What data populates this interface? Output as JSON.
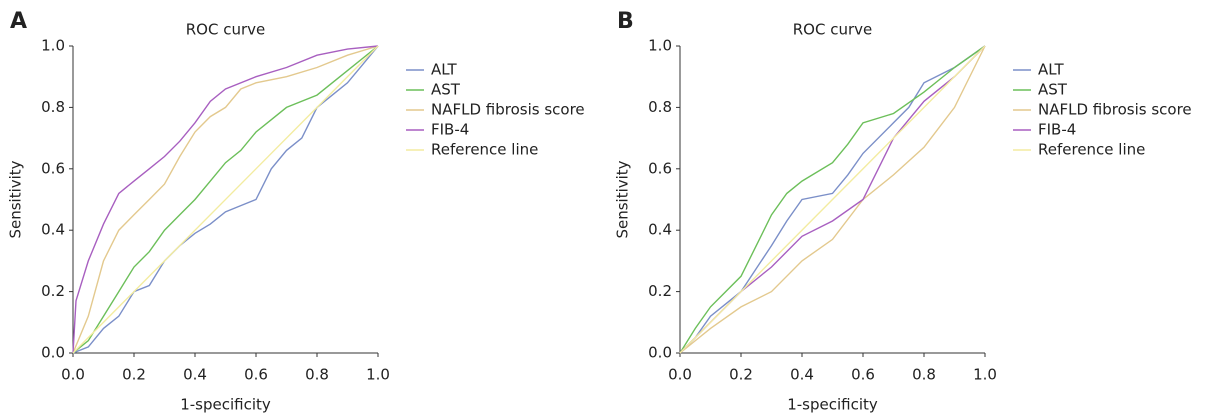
{
  "chart_data": [
    {
      "type": "line",
      "panel_label": "A",
      "title": "ROC curve",
      "x_label": "1-specificity",
      "y_label": "Sensitivity",
      "legend": "right",
      "xlim": [
        0,
        1
      ],
      "ylim": [
        0,
        1
      ],
      "xticks": [
        {
          "value": 0,
          "label": "0.0"
        },
        0.2,
        0.4,
        0.6,
        0.8,
        {
          "value": 1,
          "label": "1.0"
        }
      ],
      "yticks": [
        {
          "value": 0,
          "label": "0.0"
        },
        0.2,
        0.4,
        0.6,
        0.8,
        {
          "value": 1,
          "label": "1.0"
        }
      ],
      "series": [
        {
          "name": "ALT",
          "color": "#7b8fc8",
          "x": [
            0,
            0.05,
            0.1,
            0.15,
            0.2,
            0.25,
            0.3,
            0.35,
            0.4,
            0.45,
            0.5,
            0.55,
            0.6,
            0.65,
            0.7,
            0.75,
            0.8,
            0.85,
            0.9,
            0.95,
            1
          ],
          "values": [
            0,
            0.02,
            0.08,
            0.12,
            0.2,
            0.22,
            0.3,
            0.35,
            0.39,
            0.42,
            0.46,
            0.48,
            0.5,
            0.6,
            0.66,
            0.7,
            0.8,
            0.84,
            0.88,
            0.94,
            1
          ]
        },
        {
          "name": "AST",
          "color": "#6cbf5a",
          "x": [
            0,
            0.05,
            0.1,
            0.15,
            0.2,
            0.25,
            0.3,
            0.35,
            0.4,
            0.45,
            0.5,
            0.55,
            0.6,
            0.65,
            0.7,
            0.8,
            0.9,
            1
          ],
          "values": [
            0,
            0.04,
            0.12,
            0.2,
            0.28,
            0.33,
            0.4,
            0.45,
            0.5,
            0.56,
            0.62,
            0.66,
            0.72,
            0.76,
            0.8,
            0.84,
            0.92,
            1
          ]
        },
        {
          "name": "NAFLD fibrosis score",
          "color": "#e3c98e",
          "x": [
            0,
            0.05,
            0.1,
            0.15,
            0.2,
            0.25,
            0.3,
            0.35,
            0.4,
            0.45,
            0.5,
            0.55,
            0.6,
            0.7,
            0.8,
            0.9,
            1
          ],
          "values": [
            0,
            0.12,
            0.3,
            0.4,
            0.45,
            0.5,
            0.55,
            0.64,
            0.72,
            0.77,
            0.8,
            0.86,
            0.88,
            0.9,
            0.93,
            0.97,
            1
          ]
        },
        {
          "name": "FIB-4",
          "color": "#a85fc0",
          "x": [
            0,
            0.01,
            0.05,
            0.1,
            0.15,
            0.2,
            0.25,
            0.3,
            0.35,
            0.4,
            0.45,
            0.5,
            0.6,
            0.7,
            0.8,
            0.9,
            1
          ],
          "values": [
            0,
            0.17,
            0.3,
            0.42,
            0.52,
            0.56,
            0.6,
            0.64,
            0.69,
            0.75,
            0.82,
            0.86,
            0.9,
            0.93,
            0.97,
            0.99,
            1
          ]
        },
        {
          "name": "Reference line",
          "color": "#f3ecA0",
          "x": [
            0,
            1
          ],
          "values": [
            0,
            1
          ]
        }
      ]
    },
    {
      "type": "line",
      "panel_label": "B",
      "title": "ROC curve",
      "x_label": "1-specificity",
      "y_label": "Sensitivity",
      "legend": "right",
      "xlim": [
        0,
        1
      ],
      "ylim": [
        0,
        1
      ],
      "xticks": [
        {
          "value": 0,
          "label": "0.0"
        },
        0.2,
        0.4,
        0.6,
        0.8,
        {
          "value": 1,
          "label": "1.0"
        }
      ],
      "yticks": [
        {
          "value": 0,
          "label": "0.0"
        },
        0.2,
        0.4,
        0.6,
        0.8,
        {
          "value": 1,
          "label": "1.0"
        }
      ],
      "series": [
        {
          "name": "ALT",
          "color": "#7b8fc8",
          "x": [
            0,
            0.05,
            0.1,
            0.2,
            0.3,
            0.35,
            0.4,
            0.5,
            0.55,
            0.6,
            0.7,
            0.75,
            0.8,
            0.9,
            1
          ],
          "values": [
            0,
            0.05,
            0.12,
            0.2,
            0.35,
            0.43,
            0.5,
            0.52,
            0.58,
            0.65,
            0.75,
            0.8,
            0.88,
            0.93,
            1
          ]
        },
        {
          "name": "AST",
          "color": "#6cbf5a",
          "x": [
            0,
            0.05,
            0.1,
            0.2,
            0.25,
            0.3,
            0.35,
            0.4,
            0.5,
            0.55,
            0.6,
            0.7,
            0.8,
            0.9,
            1
          ],
          "values": [
            0,
            0.08,
            0.15,
            0.25,
            0.35,
            0.45,
            0.52,
            0.56,
            0.62,
            0.68,
            0.75,
            0.78,
            0.85,
            0.93,
            1
          ]
        },
        {
          "name": "NAFLD fibrosis score",
          "color": "#e3c98e",
          "x": [
            0,
            0.1,
            0.2,
            0.3,
            0.4,
            0.5,
            0.6,
            0.7,
            0.8,
            0.9,
            1
          ],
          "values": [
            0,
            0.08,
            0.15,
            0.2,
            0.3,
            0.37,
            0.5,
            0.58,
            0.67,
            0.8,
            1
          ]
        },
        {
          "name": "FIB-4",
          "color": "#a85fc0",
          "x": [
            0,
            0.05,
            0.1,
            0.2,
            0.3,
            0.4,
            0.5,
            0.6,
            0.65,
            0.7,
            0.8,
            0.9,
            1
          ],
          "values": [
            0,
            0.05,
            0.1,
            0.2,
            0.28,
            0.38,
            0.43,
            0.5,
            0.6,
            0.7,
            0.82,
            0.9,
            1
          ]
        },
        {
          "name": "Reference line",
          "color": "#f3eca0",
          "x": [
            0,
            1
          ],
          "values": [
            0,
            1
          ]
        }
      ]
    }
  ]
}
